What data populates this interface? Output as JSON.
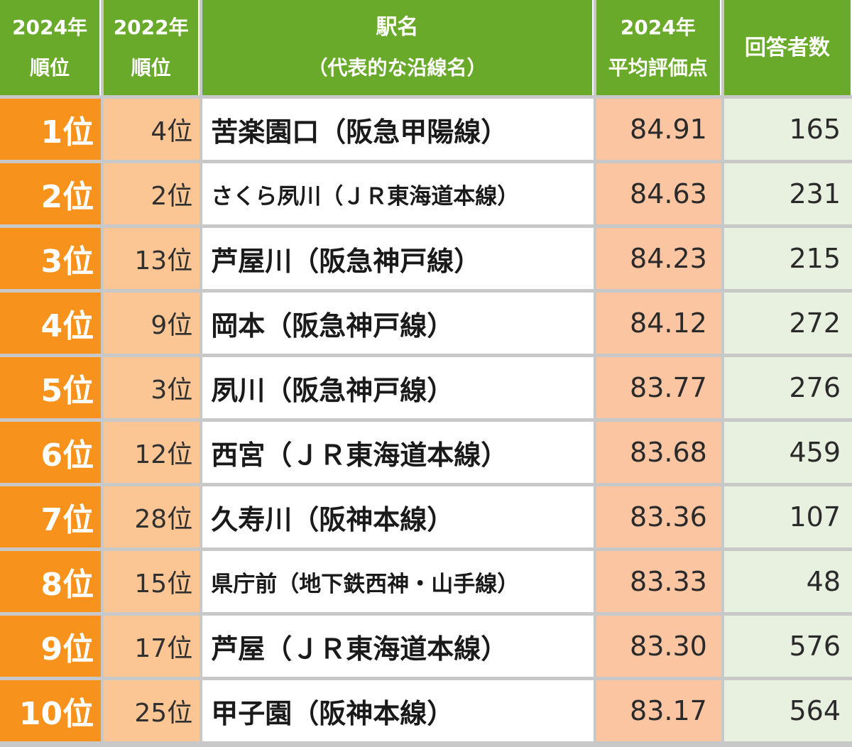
{
  "header": {
    "col1_line1": "2024年",
    "col1_line2": "順位",
    "col2_line1": "2022年",
    "col2_line2": "順位",
    "col3_line1": "駅名",
    "col3_line2": "（代表的な沿線名）",
    "col4_line1": "2024年",
    "col4_line2": "平均評価点",
    "col5": "回答者数"
  },
  "rows": [
    {
      "rank2024": "1位",
      "rank2022": "4位",
      "station": "苦楽園口（阪急甲陽線）",
      "score": "84.91",
      "respondents": "165"
    },
    {
      "rank2024": "2位",
      "rank2022": "2位",
      "station": "さくら夙川（ＪＲ東海道本線）",
      "score": "84.63",
      "respondents": "231"
    },
    {
      "rank2024": "3位",
      "rank2022": "13位",
      "station": "芦屋川（阪急神戸線）",
      "score": "84.23",
      "respondents": "215"
    },
    {
      "rank2024": "4位",
      "rank2022": "9位",
      "station": "岡本（阪急神戸線）",
      "score": "84.12",
      "respondents": "272"
    },
    {
      "rank2024": "5位",
      "rank2022": "3位",
      "station": "夙川（阪急神戸線）",
      "score": "83.77",
      "respondents": "276"
    },
    {
      "rank2024": "6位",
      "rank2022": "12位",
      "station": "西宮（ＪＲ東海道本線）",
      "score": "83.68",
      "respondents": "459"
    },
    {
      "rank2024": "7位",
      "rank2022": "28位",
      "station": "久寿川（阪神本線）",
      "score": "83.36",
      "respondents": "107"
    },
    {
      "rank2024": "8位",
      "rank2022": "15位",
      "station": "県庁前（地下鉄西神・山手線）",
      "score": "83.33",
      "respondents": "48"
    },
    {
      "rank2024": "9位",
      "rank2022": "17位",
      "station": "芦屋（ＪＲ東海道本線）",
      "score": "83.30",
      "respondents": "576"
    },
    {
      "rank2024": "10位",
      "rank2022": "25位",
      "station": "甲子園（阪神本線）",
      "score": "83.17",
      "respondents": "564"
    }
  ],
  "colors": {
    "header_bg": "#6aaa2a",
    "rank2024_bg": "#f7921d",
    "rank2022_bg": "#fbc594",
    "score_bg": "#fbc5a1",
    "count_bg": "#e8f1df",
    "grid": "#c8c8c8"
  }
}
